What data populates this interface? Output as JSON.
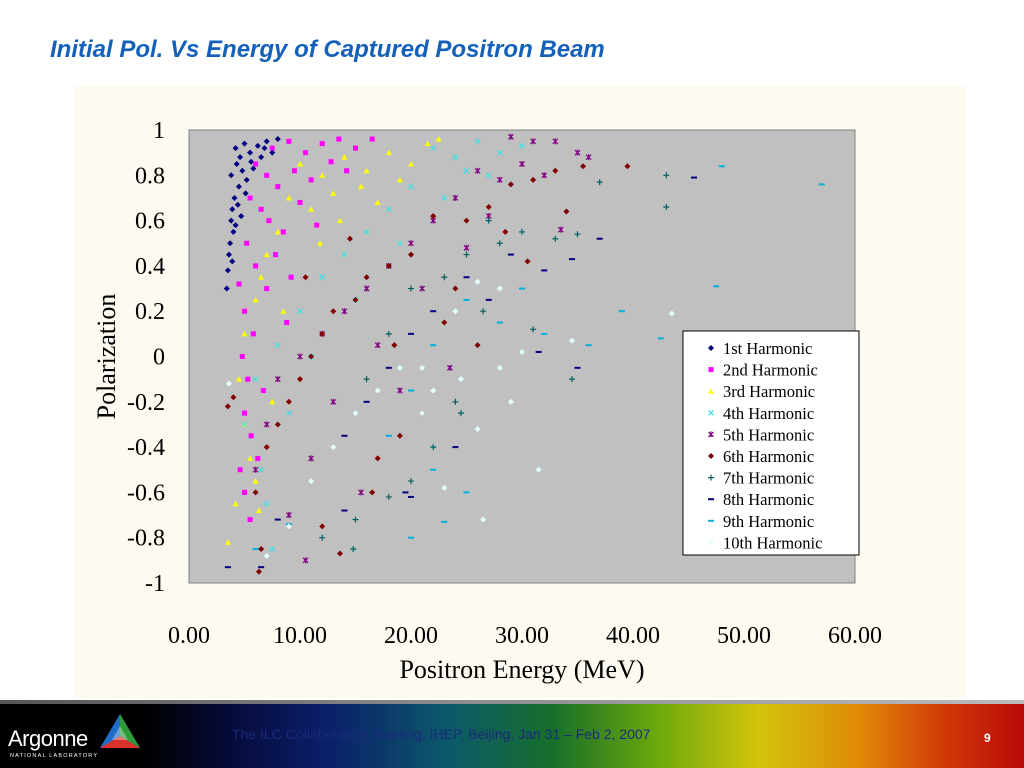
{
  "slide": {
    "title": "Initial Pol. Vs Energy  of Captured Positron Beam"
  },
  "footer": {
    "logo_text": "Argonne",
    "logo_subtext": "NATIONAL LABORATORY",
    "meeting": "The ILC Collaboration Meeting, IHEP, Beijing, Jan 31 – Feb 2, 2007",
    "page_number": "9"
  },
  "chart_data": {
    "type": "scatter",
    "title": "",
    "xlabel": "Positron Energy (MeV)",
    "ylabel": "Polarization",
    "xlim": [
      0,
      60
    ],
    "ylim": [
      -1,
      1
    ],
    "x_ticks": [
      "0.00",
      "10.00",
      "20.00",
      "30.00",
      "40.00",
      "50.00",
      "60.00"
    ],
    "y_ticks": [
      "1",
      "0.8",
      "0.6",
      "0.4",
      "0.2",
      "0",
      "-0.2",
      "-0.4",
      "-0.6",
      "-0.8",
      "-1"
    ],
    "plot_background": "#c0c0c0",
    "grid": false,
    "legend_position": "right",
    "series": [
      {
        "name": "1st Harmonic",
        "marker": "diamond",
        "color": "#000080",
        "points": [
          [
            4.2,
            0.92
          ],
          [
            4.6,
            0.88
          ],
          [
            5.0,
            0.94
          ],
          [
            5.5,
            0.9
          ],
          [
            6.2,
            0.93
          ],
          [
            7.0,
            0.95
          ],
          [
            8.0,
            0.96
          ],
          [
            4.3,
            0.85
          ],
          [
            4.8,
            0.82
          ],
          [
            5.2,
            0.78
          ],
          [
            4.5,
            0.75
          ],
          [
            4.1,
            0.7
          ],
          [
            3.9,
            0.65
          ],
          [
            3.8,
            0.6
          ],
          [
            4.0,
            0.55
          ],
          [
            3.7,
            0.5
          ],
          [
            3.6,
            0.45
          ],
          [
            3.5,
            0.38
          ],
          [
            3.4,
            0.3
          ],
          [
            4.4,
            0.67
          ],
          [
            5.6,
            0.86
          ],
          [
            6.5,
            0.88
          ],
          [
            3.8,
            0.8
          ],
          [
            5.1,
            0.72
          ],
          [
            4.7,
            0.62
          ],
          [
            4.2,
            0.58
          ],
          [
            3.9,
            0.42
          ],
          [
            6.8,
            0.92
          ],
          [
            7.5,
            0.9
          ],
          [
            5.8,
            0.83
          ]
        ]
      },
      {
        "name": "2nd Harmonic",
        "marker": "square",
        "color": "#ff00ff",
        "points": [
          [
            7.5,
            0.92
          ],
          [
            9.0,
            0.95
          ],
          [
            10.5,
            0.9
          ],
          [
            12.0,
            0.94
          ],
          [
            13.5,
            0.96
          ],
          [
            15.0,
            0.92
          ],
          [
            16.5,
            0.96
          ],
          [
            6.0,
            0.85
          ],
          [
            7.0,
            0.8
          ],
          [
            8.0,
            0.75
          ],
          [
            9.5,
            0.82
          ],
          [
            11.0,
            0.78
          ],
          [
            5.5,
            0.7
          ],
          [
            6.5,
            0.65
          ],
          [
            7.2,
            0.6
          ],
          [
            8.5,
            0.55
          ],
          [
            5.2,
            0.5
          ],
          [
            6.0,
            0.4
          ],
          [
            7.0,
            0.3
          ],
          [
            5.0,
            0.2
          ],
          [
            5.8,
            0.1
          ],
          [
            4.8,
            0.0
          ],
          [
            5.3,
            -0.1
          ],
          [
            5.0,
            -0.25
          ],
          [
            5.6,
            -0.35
          ],
          [
            6.2,
            -0.45
          ],
          [
            4.6,
            -0.5
          ],
          [
            5.0,
            -0.6
          ],
          [
            5.5,
            -0.72
          ],
          [
            7.8,
            0.45
          ],
          [
            10.0,
            0.68
          ],
          [
            12.8,
            0.86
          ],
          [
            14.2,
            0.82
          ],
          [
            9.2,
            0.35
          ],
          [
            6.7,
            -0.15
          ],
          [
            4.5,
            0.32
          ],
          [
            8.8,
            0.15
          ],
          [
            11.5,
            0.58
          ]
        ]
      },
      {
        "name": "3rd Harmonic",
        "marker": "triangle",
        "color": "#ffff00",
        "points": [
          [
            10.0,
            0.85
          ],
          [
            12.0,
            0.8
          ],
          [
            14.0,
            0.88
          ],
          [
            16.0,
            0.82
          ],
          [
            18.0,
            0.9
          ],
          [
            20.0,
            0.85
          ],
          [
            21.5,
            0.94
          ],
          [
            22.5,
            0.96
          ],
          [
            9.0,
            0.7
          ],
          [
            11.0,
            0.65
          ],
          [
            13.0,
            0.72
          ],
          [
            15.5,
            0.75
          ],
          [
            8.0,
            0.55
          ],
          [
            7.0,
            0.45
          ],
          [
            6.5,
            0.35
          ],
          [
            6.0,
            0.25
          ],
          [
            5.0,
            0.1
          ],
          [
            4.5,
            -0.1
          ],
          [
            5.0,
            -0.3
          ],
          [
            5.5,
            -0.45
          ],
          [
            6.0,
            -0.55
          ],
          [
            4.2,
            -0.65
          ],
          [
            3.5,
            -0.82
          ],
          [
            19.0,
            0.78
          ],
          [
            17.0,
            0.68
          ],
          [
            8.5,
            0.2
          ],
          [
            7.5,
            -0.2
          ],
          [
            6.3,
            -0.68
          ],
          [
            11.8,
            0.5
          ],
          [
            13.6,
            0.6
          ]
        ]
      },
      {
        "name": "4th Harmonic",
        "marker": "x",
        "color": "#40e0e0",
        "points": [
          [
            22.0,
            0.92
          ],
          [
            24.0,
            0.88
          ],
          [
            26.0,
            0.95
          ],
          [
            28.0,
            0.9
          ],
          [
            30.0,
            0.93
          ],
          [
            25.0,
            0.82
          ],
          [
            20.0,
            0.75
          ],
          [
            18.0,
            0.65
          ],
          [
            16.0,
            0.55
          ],
          [
            14.0,
            0.45
          ],
          [
            12.0,
            0.35
          ],
          [
            10.0,
            0.2
          ],
          [
            8.0,
            0.05
          ],
          [
            6.0,
            -0.1
          ],
          [
            5.0,
            -0.3
          ],
          [
            6.5,
            -0.5
          ],
          [
            7.0,
            -0.65
          ],
          [
            23.0,
            0.7
          ],
          [
            27.0,
            0.8
          ],
          [
            19.0,
            0.5
          ],
          [
            15.0,
            0.25
          ],
          [
            11.0,
            0.0
          ],
          [
            9.0,
            -0.25
          ],
          [
            7.5,
            -0.85
          ]
        ]
      },
      {
        "name": "5th Harmonic",
        "marker": "asterisk",
        "color": "#800080",
        "points": [
          [
            26.0,
            0.82
          ],
          [
            28.0,
            0.78
          ],
          [
            30.0,
            0.85
          ],
          [
            32.0,
            0.8
          ],
          [
            33.0,
            0.95
          ],
          [
            35.0,
            0.9
          ],
          [
            36.0,
            0.88
          ],
          [
            31.0,
            0.95
          ],
          [
            29.0,
            0.97
          ],
          [
            24.0,
            0.7
          ],
          [
            22.0,
            0.6
          ],
          [
            20.0,
            0.5
          ],
          [
            18.0,
            0.4
          ],
          [
            16.0,
            0.3
          ],
          [
            14.0,
            0.2
          ],
          [
            12.0,
            0.1
          ],
          [
            10.0,
            0.0
          ],
          [
            8.0,
            -0.1
          ],
          [
            7.0,
            -0.3
          ],
          [
            6.0,
            -0.5
          ],
          [
            9.0,
            -0.7
          ],
          [
            10.5,
            -0.9
          ],
          [
            27.0,
            0.62
          ],
          [
            33.5,
            0.56
          ],
          [
            25.0,
            0.48
          ],
          [
            21.0,
            0.3
          ],
          [
            17.0,
            0.05
          ],
          [
            13.0,
            -0.2
          ],
          [
            11.0,
            -0.45
          ],
          [
            19.0,
            -0.15
          ],
          [
            23.5,
            -0.05
          ],
          [
            15.5,
            -0.6
          ]
        ]
      },
      {
        "name": "6th Harmonic",
        "marker": "diamond",
        "color": "#800000",
        "points": [
          [
            29.0,
            0.76
          ],
          [
            31.0,
            0.78
          ],
          [
            33.0,
            0.82
          ],
          [
            35.5,
            0.84
          ],
          [
            39.5,
            0.84
          ],
          [
            34.0,
            0.64
          ],
          [
            27.0,
            0.66
          ],
          [
            25.0,
            0.6
          ],
          [
            22.0,
            0.62
          ],
          [
            20.0,
            0.45
          ],
          [
            18.0,
            0.4
          ],
          [
            16.0,
            0.35
          ],
          [
            15.0,
            0.25
          ],
          [
            13.0,
            0.2
          ],
          [
            12.0,
            0.1
          ],
          [
            11.0,
            0.0
          ],
          [
            10.0,
            -0.1
          ],
          [
            9.0,
            -0.2
          ],
          [
            8.0,
            -0.3
          ],
          [
            7.0,
            -0.4
          ],
          [
            6.0,
            -0.6
          ],
          [
            6.5,
            -0.85
          ],
          [
            6.3,
            -0.95
          ],
          [
            13.6,
            -0.87
          ],
          [
            12.0,
            -0.75
          ],
          [
            17.0,
            -0.45
          ],
          [
            19.0,
            -0.35
          ],
          [
            21.0,
            -0.25
          ],
          [
            23.0,
            0.15
          ],
          [
            26.0,
            0.05
          ],
          [
            28.5,
            0.55
          ],
          [
            30.5,
            0.42
          ],
          [
            3.5,
            -0.22
          ],
          [
            4.0,
            -0.18
          ],
          [
            14.5,
            0.52
          ],
          [
            18.5,
            0.05
          ],
          [
            10.5,
            0.35
          ],
          [
            16.5,
            -0.6
          ],
          [
            24.0,
            0.3
          ]
        ]
      },
      {
        "name": "7th Harmonic",
        "marker": "plus",
        "color": "#006060",
        "points": [
          [
            43.0,
            0.8
          ],
          [
            43.0,
            0.66
          ],
          [
            37.0,
            0.77
          ],
          [
            35.0,
            0.54
          ],
          [
            33.0,
            0.52
          ],
          [
            30.0,
            0.55
          ],
          [
            28.0,
            0.5
          ],
          [
            25.0,
            0.45
          ],
          [
            27.0,
            0.6
          ],
          [
            23.0,
            0.35
          ],
          [
            20.0,
            0.3
          ],
          [
            18.0,
            0.1
          ],
          [
            16.0,
            -0.1
          ],
          [
            24.0,
            -0.2
          ],
          [
            24.5,
            -0.25
          ],
          [
            22.0,
            -0.4
          ],
          [
            20.0,
            -0.55
          ],
          [
            18.0,
            -0.62
          ],
          [
            15.0,
            -0.72
          ],
          [
            14.8,
            -0.85
          ],
          [
            12.0,
            -0.8
          ],
          [
            34.5,
            -0.1
          ],
          [
            31.0,
            0.12
          ],
          [
            26.5,
            0.2
          ]
        ]
      },
      {
        "name": "8th Harmonic",
        "marker": "dash",
        "color": "#000080",
        "points": [
          [
            45.5,
            0.79
          ],
          [
            37.0,
            0.52
          ],
          [
            34.5,
            0.43
          ],
          [
            32.0,
            0.38
          ],
          [
            29.0,
            0.45
          ],
          [
            27.0,
            0.25
          ],
          [
            25.0,
            0.35
          ],
          [
            22.0,
            0.2
          ],
          [
            20.0,
            0.1
          ],
          [
            18.0,
            -0.05
          ],
          [
            16.0,
            -0.2
          ],
          [
            14.0,
            -0.35
          ],
          [
            19.5,
            -0.6
          ],
          [
            20.0,
            -0.62
          ],
          [
            14.0,
            -0.68
          ],
          [
            8.0,
            -0.72
          ],
          [
            6.5,
            -0.93
          ],
          [
            3.5,
            -0.93
          ],
          [
            31.5,
            0.02
          ],
          [
            35.0,
            -0.05
          ],
          [
            24.0,
            -0.4
          ]
        ]
      },
      {
        "name": "9th Harmonic",
        "marker": "dash",
        "color": "#00b0e0",
        "points": [
          [
            48.0,
            0.84
          ],
          [
            57.0,
            0.76
          ],
          [
            47.5,
            0.31
          ],
          [
            42.5,
            0.08
          ],
          [
            36.0,
            0.05
          ],
          [
            32.0,
            0.1
          ],
          [
            28.0,
            0.15
          ],
          [
            25.0,
            0.25
          ],
          [
            22.0,
            0.05
          ],
          [
            20.0,
            -0.15
          ],
          [
            18.0,
            -0.35
          ],
          [
            22.0,
            -0.5
          ],
          [
            25.0,
            -0.6
          ],
          [
            23.0,
            -0.73
          ],
          [
            20.0,
            -0.8
          ],
          [
            9.0,
            -0.74
          ],
          [
            6.0,
            -0.85
          ],
          [
            30.0,
            0.3
          ],
          [
            39.0,
            0.2
          ]
        ]
      },
      {
        "name": "10th Harmonic",
        "marker": "diamond",
        "color": "#e0ffff",
        "points": [
          [
            43.5,
            0.19
          ],
          [
            34.5,
            0.07
          ],
          [
            30.0,
            0.02
          ],
          [
            28.0,
            -0.05
          ],
          [
            26.0,
            0.33
          ],
          [
            28.0,
            0.3
          ],
          [
            24.0,
            0.2
          ],
          [
            21.0,
            -0.05
          ],
          [
            22.0,
            -0.15
          ],
          [
            26.0,
            -0.32
          ],
          [
            26.5,
            -0.72
          ],
          [
            23.0,
            -0.58
          ],
          [
            31.5,
            -0.5
          ],
          [
            21.0,
            -0.25
          ],
          [
            19.0,
            -0.05
          ],
          [
            17.0,
            -0.15
          ],
          [
            15.0,
            -0.25
          ],
          [
            13.0,
            -0.4
          ],
          [
            11.0,
            -0.55
          ],
          [
            9.0,
            -0.75
          ],
          [
            7.0,
            -0.88
          ],
          [
            3.6,
            -0.12
          ],
          [
            24.5,
            -0.1
          ],
          [
            29.0,
            -0.2
          ]
        ]
      }
    ]
  }
}
